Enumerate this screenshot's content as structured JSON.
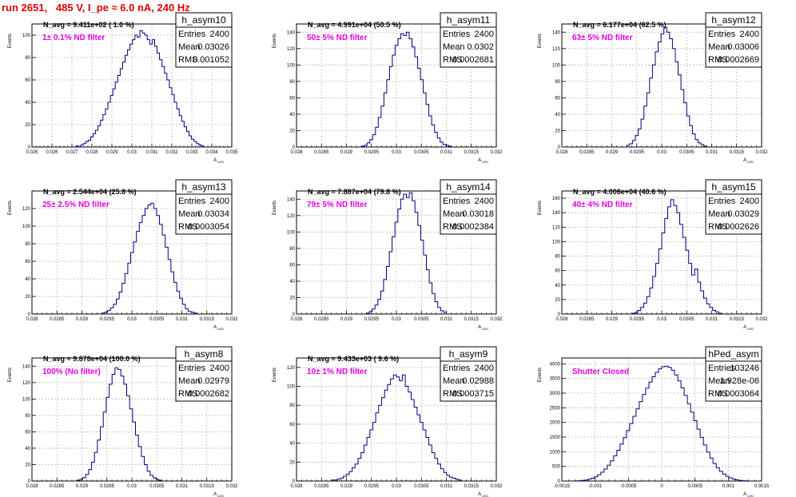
{
  "header": {
    "run_title": "run 2651,   485 V, I_pe ≈ 6.0 nA, 240 Hz"
  },
  "colors": {
    "histogram": "#000080",
    "title": "#e00000",
    "filter_label": "#e000e0",
    "grid": "#bbbbbb"
  },
  "stats_labels": {
    "entries": "Entries",
    "mean": "Mean",
    "rms": "RMS"
  },
  "chart_data": [
    {
      "type": "histogram",
      "name": "h_asym10",
      "navg": "N_avg = 9.411e+02 ( 1.0 %)",
      "filter": "1± 0.1% ND filter",
      "xlabel": "A",
      "xlabel_sub": "LED",
      "ylabel": "Events",
      "entries": "2400",
      "mean": "0.03026",
      "rms": "0.001052",
      "xlim": [
        0.025,
        0.035
      ],
      "ylim": [
        0,
        110
      ],
      "xticks": [
        0.025,
        0.026,
        0.027,
        0.028,
        0.029,
        0.03,
        0.031,
        0.032,
        0.033,
        0.034,
        0.035
      ],
      "xtick_labels": [
        "0.025",
        "0.026",
        "0.027",
        "0.028",
        "0.029",
        "0.03",
        "0.031",
        "0.032",
        "0.033",
        "0.034",
        "0.035"
      ],
      "yticks": [
        0,
        20,
        40,
        60,
        80,
        100
      ],
      "ytick_labels": [
        "0",
        "20",
        "40",
        "60",
        "80",
        "100"
      ],
      "bin_edges": [
        0.0272,
        0.0336
      ],
      "values": [
        1,
        0,
        2,
        3,
        5,
        6,
        9,
        12,
        15,
        19,
        24,
        29,
        34,
        40,
        46,
        52,
        58,
        64,
        70,
        76,
        82,
        87,
        92,
        96,
        100,
        98,
        104,
        102,
        100,
        96,
        92,
        96,
        90,
        84,
        78,
        72,
        66,
        60,
        53,
        47,
        40,
        34,
        28,
        23,
        18,
        14,
        10,
        7,
        5,
        3,
        2,
        1
      ]
    },
    {
      "type": "histogram",
      "name": "h_asym11",
      "navg": "N_avg = 4.991e+04 (50.5 %)",
      "filter": "50± 5% ND filter",
      "xlabel": "A",
      "xlabel_sub": "LED",
      "ylabel": "Events",
      "entries": "2400",
      "mean": "0.0302",
      "rms": "0.0002681",
      "xlim": [
        0.028,
        0.032
      ],
      "ylim": [
        0,
        150
      ],
      "xticks": [
        0.028,
        0.0285,
        0.029,
        0.0295,
        0.03,
        0.0305,
        0.031,
        0.0315,
        0.032
      ],
      "xtick_labels": [
        "0.028",
        "0.0285",
        "0.029",
        "0.0295",
        "0.03",
        "0.0305",
        "0.031",
        "0.0315",
        "0.032"
      ],
      "yticks": [
        0,
        20,
        40,
        60,
        80,
        100,
        120,
        140
      ],
      "ytick_labels": [
        "0",
        "20",
        "40",
        "60",
        "80",
        "100",
        "120",
        "140"
      ],
      "bin_edges": [
        0.0293,
        0.0311
      ],
      "values": [
        1,
        2,
        5,
        9,
        15,
        24,
        36,
        50,
        66,
        82,
        98,
        112,
        124,
        132,
        138,
        136,
        140,
        132,
        122,
        110,
        96,
        82,
        66,
        52,
        38,
        27,
        18,
        11,
        6,
        3,
        2,
        1
      ]
    },
    {
      "type": "histogram",
      "name": "h_asym12",
      "navg": "N_avg = 6.177e+04 (62.5 %)",
      "filter": "63± 5% ND filter",
      "xlabel": "A",
      "xlabel_sub": "LED",
      "ylabel": "Events",
      "entries": "2400",
      "mean": "0.03006",
      "rms": "0.0002669",
      "xlim": [
        0.028,
        0.032
      ],
      "ylim": [
        0,
        150
      ],
      "xticks": [
        0.028,
        0.0285,
        0.029,
        0.0295,
        0.03,
        0.0305,
        0.031,
        0.0315,
        0.032
      ],
      "xtick_labels": [
        "0.028",
        "0.0285",
        "0.029",
        "0.0295",
        "0.03",
        "0.0305",
        "0.031",
        "0.0315",
        "0.032"
      ],
      "yticks": [
        0,
        20,
        40,
        60,
        80,
        100,
        120,
        140
      ],
      "ytick_labels": [
        "0",
        "20",
        "40",
        "60",
        "80",
        "100",
        "120",
        "140"
      ],
      "bin_edges": [
        0.0293,
        0.0309
      ],
      "values": [
        2,
        4,
        8,
        14,
        22,
        34,
        50,
        66,
        84,
        100,
        116,
        128,
        138,
        146,
        140,
        132,
        120,
        104,
        88,
        70,
        54,
        38,
        26,
        16,
        9,
        5,
        3,
        1
      ]
    },
    {
      "type": "histogram",
      "name": "h_asym13",
      "navg": "N_avg = 2.544e+04 (25.8 %)",
      "filter": "25± 2.5% ND filter",
      "xlabel": "A",
      "xlabel_sub": "LED",
      "ylabel": "Events",
      "entries": "2400",
      "mean": "0.03034",
      "rms": "0.0003054",
      "xlim": [
        0.028,
        0.032
      ],
      "ylim": [
        0,
        140
      ],
      "xticks": [
        0.028,
        0.0285,
        0.029,
        0.0295,
        0.03,
        0.0305,
        0.031,
        0.0315,
        0.032
      ],
      "xtick_labels": [
        "0.028",
        "0.0285",
        "0.029",
        "0.0295",
        "0.03",
        "0.0305",
        "0.031",
        "0.0315",
        "0.032"
      ],
      "yticks": [
        0,
        20,
        40,
        60,
        80,
        100,
        120
      ],
      "ytick_labels": [
        "0",
        "20",
        "40",
        "60",
        "80",
        "100",
        "120"
      ],
      "bin_edges": [
        0.0294,
        0.0313
      ],
      "values": [
        1,
        2,
        4,
        7,
        11,
        17,
        25,
        35,
        46,
        58,
        70,
        82,
        94,
        104,
        112,
        120,
        124,
        126,
        120,
        112,
        102,
        90,
        76,
        62,
        48,
        36,
        26,
        18,
        11,
        6,
        3,
        2,
        1
      ]
    },
    {
      "type": "histogram",
      "name": "h_asym14",
      "navg": "N_avg = 7.887e+04 (79.8 %)",
      "filter": "79± 5% ND filter",
      "xlabel": "A",
      "xlabel_sub": "LED",
      "ylabel": "Events",
      "entries": "2400",
      "mean": "0.03018",
      "rms": "0.0002384",
      "xlim": [
        0.028,
        0.032
      ],
      "ylim": [
        0,
        150
      ],
      "xticks": [
        0.028,
        0.0285,
        0.029,
        0.0295,
        0.03,
        0.0305,
        0.031,
        0.0315,
        0.032
      ],
      "xtick_labels": [
        "0.028",
        "0.0285",
        "0.029",
        "0.0295",
        "0.03",
        "0.0305",
        "0.031",
        "0.0315",
        "0.032"
      ],
      "yticks": [
        0,
        20,
        40,
        60,
        80,
        100,
        120,
        140
      ],
      "ytick_labels": [
        "0",
        "20",
        "40",
        "60",
        "80",
        "100",
        "120",
        "140"
      ],
      "bin_edges": [
        0.0294,
        0.031
      ],
      "values": [
        1,
        3,
        6,
        11,
        18,
        28,
        42,
        58,
        76,
        94,
        112,
        128,
        140,
        146,
        142,
        148,
        138,
        124,
        108,
        90,
        72,
        54,
        38,
        25,
        15,
        8,
        4,
        2
      ]
    },
    {
      "type": "histogram",
      "name": "h_asym15",
      "navg": "N_avg = 4.006e+04 (40.6 %)",
      "filter": "40± 4% ND filter",
      "xlabel": "A",
      "xlabel_sub": "LED",
      "ylabel": "Events",
      "entries": "2400",
      "mean": "0.03029",
      "rms": "0.0002626",
      "xlim": [
        0.028,
        0.032
      ],
      "ylim": [
        0,
        170
      ],
      "xticks": [
        0.028,
        0.0285,
        0.029,
        0.0295,
        0.03,
        0.0305,
        0.031,
        0.0315,
        0.032
      ],
      "xtick_labels": [
        "0.028",
        "0.0285",
        "0.029",
        "0.0295",
        "0.03",
        "0.0305",
        "0.031",
        "0.0315",
        "0.032"
      ],
      "yticks": [
        0,
        20,
        40,
        60,
        80,
        100,
        120,
        140,
        160
      ],
      "ytick_labels": [
        "0",
        "20",
        "40",
        "60",
        "80",
        "100",
        "120",
        "140",
        "160"
      ],
      "bin_edges": [
        0.0294,
        0.0312
      ],
      "values": [
        1,
        2,
        5,
        9,
        15,
        24,
        36,
        52,
        70,
        90,
        112,
        132,
        148,
        158,
        150,
        140,
        124,
        106,
        88,
        70,
        54,
        62,
        44,
        32,
        22,
        14,
        9,
        5,
        3,
        1
      ]
    },
    {
      "type": "histogram",
      "name": "h_asym8",
      "navg": "N_avg = 9.878e+04 (100.0 %)",
      "filter": "100% (No filter)",
      "xlabel": "A",
      "xlabel_sub": "LED",
      "ylabel": "Events",
      "entries": "2400",
      "mean": "0.02979",
      "rms": "0.0002682",
      "xlim": [
        0.028,
        0.032
      ],
      "ylim": [
        0,
        150
      ],
      "xticks": [
        0.028,
        0.0285,
        0.029,
        0.0295,
        0.03,
        0.0305,
        0.031,
        0.0315,
        0.032
      ],
      "xtick_labels": [
        "0.028",
        "0.0285",
        "0.029",
        "0.0295",
        "0.03",
        "0.0305",
        "0.031",
        "0.0315",
        "0.032"
      ],
      "yticks": [
        0,
        20,
        40,
        60,
        80,
        100,
        120,
        140
      ],
      "ytick_labels": [
        "0",
        "20",
        "40",
        "60",
        "80",
        "100",
        "120",
        "140"
      ],
      "bin_edges": [
        0.0289,
        0.0306
      ],
      "values": [
        1,
        2,
        4,
        8,
        14,
        23,
        35,
        50,
        66,
        84,
        102,
        118,
        130,
        138,
        136,
        128,
        118,
        104,
        88,
        72,
        56,
        42,
        30,
        20,
        12,
        7,
        4,
        2,
        1
      ]
    },
    {
      "type": "histogram",
      "name": "h_asym9",
      "navg": "N_avg = 9.433e+03 ( 9.6 %)",
      "filter": "10± 1% ND filter",
      "xlabel": "A",
      "xlabel_sub": "LED",
      "ylabel": "Events",
      "entries": "2400",
      "mean": "0.02988",
      "rms": "0.0003715",
      "xlim": [
        0.028,
        0.032
      ],
      "ylim": [
        0,
        130
      ],
      "xticks": [
        0.028,
        0.0285,
        0.029,
        0.0295,
        0.03,
        0.0305,
        0.031,
        0.0315,
        0.032
      ],
      "xtick_labels": [
        "0.028",
        "0.0285",
        "0.029",
        "0.0295",
        "0.03",
        "0.0305",
        "0.031",
        "0.0315",
        "0.032"
      ],
      "yticks": [
        0,
        20,
        40,
        60,
        80,
        100,
        120
      ],
      "ytick_labels": [
        "0",
        "20",
        "40",
        "60",
        "80",
        "100",
        "120"
      ],
      "bin_edges": [
        0.0287,
        0.0313
      ],
      "values": [
        1,
        1,
        2,
        3,
        5,
        7,
        10,
        14,
        18,
        24,
        30,
        38,
        46,
        54,
        62,
        72,
        80,
        88,
        96,
        102,
        108,
        112,
        110,
        106,
        112,
        100,
        94,
        86,
        78,
        70,
        62,
        54,
        46,
        38,
        30,
        24,
        18,
        13,
        9,
        6,
        4,
        3,
        2,
        1
      ]
    },
    {
      "type": "histogram",
      "name": "hPed_asym",
      "navg": "",
      "filter": "Shutter Closed",
      "xlabel": "A",
      "xlabel_sub": "LED",
      "ylabel": "Events",
      "entries": "103246",
      "mean": "1.928e-06",
      "rms": "0.0003064",
      "xlim": [
        -0.0015,
        0.0015
      ],
      "ylim": [
        0,
        4200
      ],
      "xticks": [
        -0.0015,
        -0.001,
        -0.0005,
        0,
        0.0005,
        0.001,
        0.0015
      ],
      "xtick_labels": [
        "-0.0015",
        "-0.001",
        "-0.0005",
        "0",
        "0.0005",
        "0.001",
        "0.0015"
      ],
      "yticks": [
        0,
        500,
        1000,
        1500,
        2000,
        2500,
        3000,
        3500,
        4000
      ],
      "ytick_labels": [
        "0",
        "500",
        "1000",
        "1500",
        "2000",
        "2500",
        "3000",
        "3500",
        "4000"
      ],
      "bin_edges": [
        -0.0013,
        0.0013
      ],
      "values": [
        5,
        10,
        20,
        35,
        60,
        95,
        145,
        215,
        300,
        410,
        540,
        690,
        860,
        1050,
        1260,
        1480,
        1720,
        1960,
        2210,
        2460,
        2710,
        2950,
        3170,
        3380,
        3560,
        3710,
        3830,
        3900,
        3920,
        3880,
        3780,
        3620,
        3420,
        3180,
        2920,
        2640,
        2350,
        2060,
        1770,
        1490,
        1230,
        990,
        780,
        600,
        450,
        330,
        235,
        160,
        105,
        65,
        40,
        22,
        12,
        6
      ]
    }
  ]
}
